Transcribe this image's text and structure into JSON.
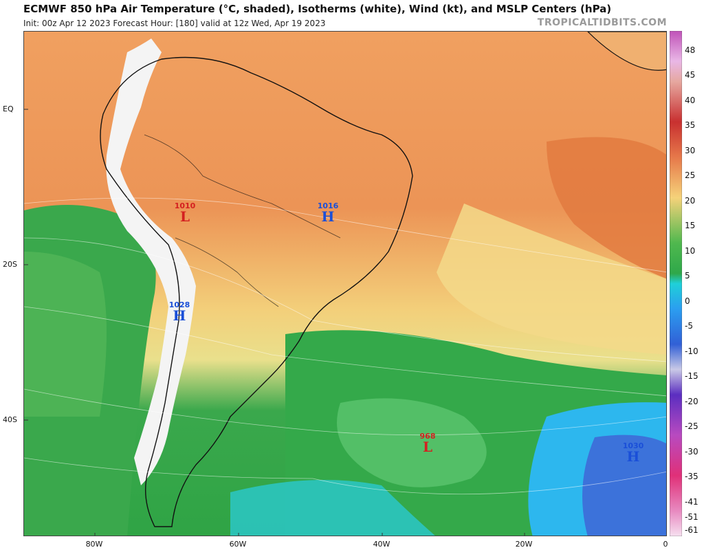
{
  "header": {
    "title": "ECMWF 850 hPa Air Temperature (°C, shaded), Isotherms (white), Wind (kt), and MSLP Centers (hPa)",
    "subtitle": "Init: 00z Apr 12 2023   Forecast Hour: [180]   valid at 12z Wed, Apr 19 2023",
    "site": "TROPICALTIDBITS.COM"
  },
  "axes": {
    "lat_labels": [
      "EQ",
      "20S",
      "40S"
    ],
    "lon_labels": [
      "80W",
      "60W",
      "40W",
      "20W",
      "0"
    ]
  },
  "colorbar": {
    "labels": [
      "48",
      "45",
      "40",
      "35",
      "30",
      "25",
      "20",
      "15",
      "10",
      "5",
      "0",
      "-5",
      "-10",
      "-15",
      "-20",
      "-25",
      "-30",
      "-35",
      "-41",
      "-51",
      "-61"
    ]
  },
  "pressure_centers": [
    {
      "kind": "L",
      "value": "1010"
    },
    {
      "kind": "H",
      "value": "1016"
    },
    {
      "kind": "H",
      "value": "1028"
    },
    {
      "kind": "L",
      "value": "968"
    },
    {
      "kind": "H",
      "value": "1030"
    }
  ],
  "colors": {
    "hot": "#e8864a",
    "warm": "#f2b35e",
    "mild": "#f3d98a",
    "cool": "#4cb85a",
    "cold": "#2db7ee",
    "colder": "#3f66d6",
    "land_border": "#111111",
    "high": "#1a4fd8",
    "low": "#d42020"
  }
}
